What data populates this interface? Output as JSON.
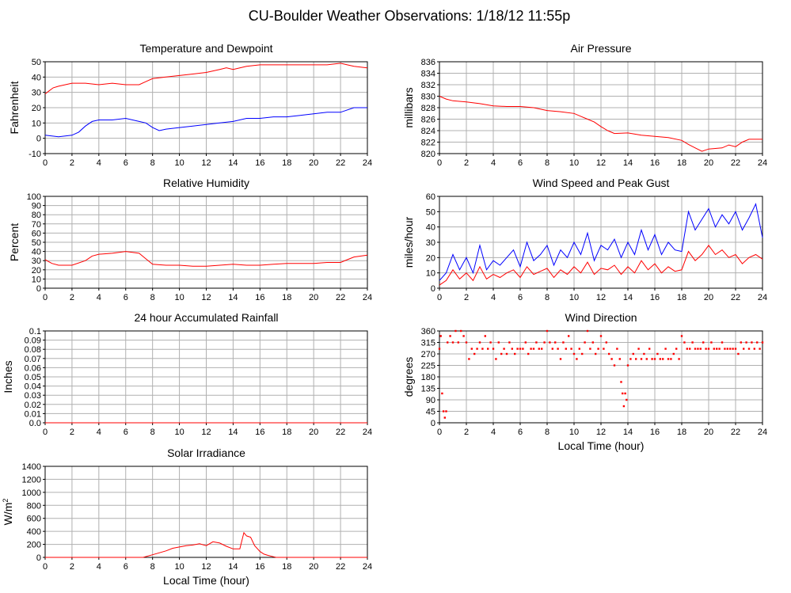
{
  "page_title": "CU-Boulder Weather Observations: 1/18/12 11:55p",
  "colors": {
    "red": "#ff0000",
    "blue": "#0000ff",
    "grid": "#b0b0b0",
    "axes": "#000000"
  },
  "chart_data": [
    {
      "id": "temp",
      "type": "line",
      "title": "Temperature and Dewpoint",
      "ylabel": "Fahrenheit",
      "xlabel": "",
      "xlim": [
        0,
        24
      ],
      "ylim": [
        -10,
        50
      ],
      "xticks": [
        0,
        2,
        4,
        6,
        8,
        10,
        12,
        14,
        16,
        18,
        20,
        22,
        24
      ],
      "yticks": [
        -10,
        0,
        10,
        20,
        30,
        40,
        50
      ],
      "grid": true,
      "series": [
        {
          "color": "#ff0000",
          "style": "line",
          "x": [
            0,
            0.3,
            0.6,
            1,
            2,
            3,
            4,
            5,
            6,
            7,
            7.5,
            8,
            9,
            10,
            11,
            12,
            13,
            13.5,
            14,
            15,
            16,
            17,
            18,
            19,
            20,
            21,
            22,
            22.5,
            23,
            24
          ],
          "y": [
            29,
            31,
            33,
            34,
            36,
            36,
            35,
            36,
            35,
            35,
            37,
            39,
            40,
            41,
            42,
            43,
            45,
            46,
            45,
            47,
            48,
            48,
            48,
            48,
            48,
            48,
            49,
            48,
            47,
            46
          ]
        },
        {
          "color": "#0000ff",
          "style": "line",
          "x": [
            0,
            1,
            2,
            2.5,
            3,
            3.5,
            4,
            5,
            6,
            7,
            7.5,
            8,
            8.5,
            9,
            10,
            11,
            12,
            13,
            14,
            15,
            16,
            17,
            18,
            19,
            20,
            21,
            22,
            23,
            24
          ],
          "y": [
            2,
            1,
            2,
            4,
            8,
            11,
            12,
            12,
            13,
            11,
            10,
            7,
            5,
            6,
            7,
            8,
            9,
            10,
            11,
            13,
            13,
            14,
            14,
            15,
            16,
            17,
            17,
            20,
            20
          ]
        }
      ]
    },
    {
      "id": "pressure",
      "type": "line",
      "title": "Air Pressure",
      "ylabel": "millibars",
      "xlabel": "",
      "xlim": [
        0,
        24
      ],
      "ylim": [
        820,
        836
      ],
      "xticks": [
        0,
        2,
        4,
        6,
        8,
        10,
        12,
        14,
        16,
        18,
        20,
        22,
        24
      ],
      "yticks": [
        820,
        822,
        824,
        826,
        828,
        830,
        832,
        834,
        836
      ],
      "grid": true,
      "series": [
        {
          "color": "#ff0000",
          "style": "line",
          "x": [
            0,
            0.5,
            1,
            2,
            3,
            4,
            5,
            6,
            7,
            8,
            9,
            10,
            10.5,
            11,
            11.5,
            12,
            12.5,
            13,
            14,
            15,
            16,
            17,
            18,
            18.5,
            19,
            19.5,
            20,
            21,
            21.5,
            22,
            22.5,
            23,
            24
          ],
          "y": [
            830,
            829.5,
            829.2,
            829.0,
            828.7,
            828.3,
            828.2,
            828.2,
            828.0,
            827.5,
            827.3,
            827.0,
            826.5,
            826.0,
            825.5,
            824.7,
            824.0,
            823.5,
            823.6,
            823.2,
            823.0,
            822.8,
            822.3,
            821.6,
            821.0,
            820.4,
            820.8,
            821.0,
            821.5,
            821.2,
            822.0,
            822.5,
            822.5
          ]
        }
      ]
    },
    {
      "id": "humidity",
      "type": "line",
      "title": "Relative Humidity",
      "ylabel": "Percent",
      "xlabel": "",
      "xlim": [
        0,
        24
      ],
      "ylim": [
        0,
        100
      ],
      "xticks": [
        0,
        2,
        4,
        6,
        8,
        10,
        12,
        14,
        16,
        18,
        20,
        22,
        24
      ],
      "yticks": [
        0,
        10,
        20,
        30,
        40,
        50,
        60,
        70,
        80,
        90,
        100
      ],
      "grid": true,
      "series": [
        {
          "color": "#ff0000",
          "style": "line",
          "x": [
            0,
            0.5,
            1,
            2,
            3,
            3.5,
            4,
            5,
            6,
            7,
            7.5,
            8,
            9,
            10,
            11,
            12,
            13,
            14,
            15,
            16,
            17,
            18,
            19,
            20,
            21,
            22,
            22.5,
            23,
            24
          ],
          "y": [
            31,
            27,
            25,
            25,
            30,
            35,
            37,
            38,
            40,
            38,
            32,
            26,
            25,
            25,
            24,
            24,
            25,
            26,
            25,
            25,
            26,
            27,
            27,
            27,
            28,
            28,
            31,
            34,
            36
          ]
        }
      ]
    },
    {
      "id": "wind_speed",
      "type": "line",
      "title": "Wind Speed and Peak Gust",
      "ylabel": "miles/hour",
      "xlabel": "",
      "xlim": [
        0,
        24
      ],
      "ylim": [
        0,
        60
      ],
      "xticks": [
        0,
        2,
        4,
        6,
        8,
        10,
        12,
        14,
        16,
        18,
        20,
        22,
        24
      ],
      "yticks": [
        0,
        10,
        20,
        30,
        40,
        50,
        60
      ],
      "grid": true,
      "series": [
        {
          "color": "#0000ff",
          "style": "line",
          "x": [
            0,
            0.5,
            1,
            1.5,
            2,
            2.5,
            3,
            3.5,
            4,
            4.5,
            5,
            5.5,
            6,
            6.5,
            7,
            7.5,
            8,
            8.5,
            9,
            9.5,
            10,
            10.5,
            11,
            11.5,
            12,
            12.5,
            13,
            13.5,
            14,
            14.5,
            15,
            15.5,
            16,
            16.5,
            17,
            17.5,
            18,
            18.5,
            19,
            19.5,
            20,
            20.5,
            21,
            21.5,
            22,
            22.5,
            23,
            23.5,
            24
          ],
          "y": [
            5,
            10,
            22,
            12,
            20,
            10,
            28,
            12,
            18,
            15,
            20,
            25,
            14,
            30,
            18,
            22,
            28,
            15,
            25,
            20,
            30,
            22,
            36,
            18,
            28,
            25,
            32,
            20,
            30,
            22,
            38,
            25,
            35,
            22,
            30,
            25,
            24,
            50,
            38,
            45,
            52,
            40,
            48,
            42,
            50,
            38,
            46,
            55,
            33
          ]
        },
        {
          "color": "#ff0000",
          "style": "line",
          "x": [
            0,
            0.5,
            1,
            1.5,
            2,
            2.5,
            3,
            3.5,
            4,
            4.5,
            5,
            5.5,
            6,
            6.5,
            7,
            7.5,
            8,
            8.5,
            9,
            9.5,
            10,
            10.5,
            11,
            11.5,
            12,
            12.5,
            13,
            13.5,
            14,
            14.5,
            15,
            15.5,
            16,
            16.5,
            17,
            17.5,
            18,
            18.5,
            19,
            19.5,
            20,
            20.5,
            21,
            21.5,
            22,
            22.5,
            23,
            23.5,
            24
          ],
          "y": [
            2,
            5,
            12,
            6,
            10,
            5,
            14,
            6,
            9,
            7,
            10,
            12,
            7,
            14,
            9,
            11,
            13,
            7,
            12,
            9,
            14,
            10,
            17,
            9,
            13,
            12,
            15,
            9,
            14,
            10,
            18,
            12,
            16,
            10,
            14,
            11,
            12,
            24,
            18,
            22,
            28,
            22,
            25,
            20,
            22,
            16,
            20,
            22,
            19
          ]
        }
      ]
    },
    {
      "id": "rainfall",
      "type": "line",
      "title": "24 hour Accumulated Rainfall",
      "ylabel": "Inches",
      "xlabel": "",
      "xlim": [
        0,
        24
      ],
      "ylim": [
        0,
        0.1
      ],
      "xticks": [
        0,
        2,
        4,
        6,
        8,
        10,
        12,
        14,
        16,
        18,
        20,
        22,
        24
      ],
      "yticks": [
        0.0,
        0.01,
        0.02,
        0.03,
        0.04,
        0.05,
        0.06,
        0.07,
        0.08,
        0.09,
        0.1
      ],
      "ytick_labels": [
        "0.0",
        "0.01",
        "0.02",
        "0.03",
        "0.04",
        "0.05",
        "0.06",
        "0.07",
        "0.08",
        "0.09",
        "0.1"
      ],
      "grid": true,
      "series": [
        {
          "color": "#ff0000",
          "style": "line",
          "x": [
            0,
            24
          ],
          "y": [
            0,
            0
          ]
        }
      ]
    },
    {
      "id": "wind_dir",
      "type": "scatter",
      "title": "Wind Direction",
      "ylabel": "degrees",
      "xlabel": "Local Time (hour)",
      "xlim": [
        0,
        24
      ],
      "ylim": [
        0,
        360
      ],
      "xticks": [
        0,
        2,
        4,
        6,
        8,
        10,
        12,
        14,
        16,
        18,
        20,
        22,
        24
      ],
      "yticks": [
        0,
        45,
        90,
        135,
        180,
        225,
        270,
        315,
        360
      ],
      "grid": true,
      "series": [
        {
          "color": "#ff0000",
          "style": "points",
          "x": [
            0,
            0.1,
            0.2,
            0.3,
            0.4,
            0.5,
            0.6,
            0.8,
            1,
            1.2,
            1.4,
            1.6,
            1.8,
            2,
            2.2,
            2.4,
            2.6,
            2.8,
            3,
            3.2,
            3.4,
            3.6,
            3.8,
            4,
            4.2,
            4.4,
            4.6,
            4.8,
            5,
            5.2,
            5.4,
            5.6,
            5.8,
            6,
            6.2,
            6.4,
            6.6,
            6.8,
            7,
            7.2,
            7.4,
            7.6,
            7.8,
            8,
            8.2,
            8.4,
            8.6,
            8.8,
            9,
            9.2,
            9.4,
            9.6,
            9.8,
            10,
            10.2,
            10.4,
            10.6,
            10.8,
            11,
            11.2,
            11.4,
            11.6,
            11.8,
            12,
            12.2,
            12.4,
            12.6,
            12.8,
            13,
            13.2,
            13.4,
            13.5,
            13.6,
            13.7,
            13.8,
            13.9,
            14,
            14.2,
            14.4,
            14.6,
            14.8,
            15,
            15.2,
            15.4,
            15.6,
            15.8,
            16,
            16.2,
            16.4,
            16.6,
            16.8,
            17,
            17.2,
            17.4,
            17.6,
            17.8,
            18,
            18.2,
            18.4,
            18.6,
            18.8,
            19,
            19.2,
            19.4,
            19.6,
            19.8,
            20,
            20.2,
            20.4,
            20.6,
            20.8,
            21,
            21.2,
            21.4,
            21.6,
            21.8,
            22,
            22.2,
            22.4,
            22.6,
            22.8,
            23,
            23.2,
            23.4,
            23.6,
            23.8,
            24
          ],
          "y": [
            290,
            340,
            115,
            45,
            20,
            45,
            315,
            340,
            315,
            360,
            315,
            360,
            340,
            315,
            250,
            290,
            270,
            290,
            315,
            290,
            340,
            290,
            315,
            290,
            250,
            315,
            270,
            290,
            270,
            315,
            290,
            270,
            290,
            290,
            290,
            315,
            270,
            290,
            290,
            315,
            290,
            290,
            315,
            360,
            315,
            290,
            315,
            290,
            250,
            315,
            290,
            340,
            290,
            270,
            250,
            290,
            270,
            315,
            360,
            290,
            315,
            270,
            290,
            340,
            290,
            315,
            270,
            250,
            225,
            290,
            250,
            160,
            115,
            65,
            115,
            90,
            225,
            250,
            270,
            250,
            290,
            250,
            270,
            250,
            290,
            250,
            250,
            270,
            250,
            250,
            290,
            250,
            250,
            270,
            290,
            250,
            340,
            315,
            290,
            290,
            315,
            290,
            290,
            290,
            315,
            290,
            290,
            315,
            290,
            290,
            290,
            315,
            290,
            290,
            290,
            290,
            290,
            270,
            315,
            290,
            315,
            290,
            315,
            290,
            315,
            290,
            315
          ]
        }
      ]
    },
    {
      "id": "solar",
      "type": "line",
      "title": "Solar Irradiance",
      "ylabel": "W/m",
      "ylabel_sup": "2",
      "xlabel": "Local Time (hour)",
      "xlim": [
        0,
        24
      ],
      "ylim": [
        0,
        1400
      ],
      "xticks": [
        0,
        2,
        4,
        6,
        8,
        10,
        12,
        14,
        16,
        18,
        20,
        22,
        24
      ],
      "yticks": [
        0,
        200,
        400,
        600,
        800,
        1000,
        1200,
        1400
      ],
      "grid": true,
      "series": [
        {
          "color": "#ff0000",
          "style": "line",
          "x": [
            0,
            7.3,
            8,
            9,
            9.5,
            10,
            10.5,
            11,
            11.5,
            12,
            12.5,
            13,
            13.5,
            14,
            14.5,
            14.8,
            15,
            15.3,
            15.6,
            16,
            16.3,
            16.6,
            17,
            17.2,
            24
          ],
          "y": [
            0,
            0,
            40,
            100,
            140,
            160,
            180,
            190,
            210,
            180,
            240,
            220,
            170,
            130,
            130,
            380,
            330,
            310,
            180,
            90,
            50,
            30,
            10,
            0,
            0
          ]
        }
      ]
    }
  ]
}
